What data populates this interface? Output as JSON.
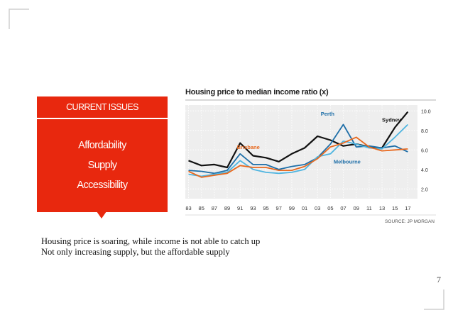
{
  "slide": {
    "header": "CURRENT ISSUES",
    "issues": [
      "Affordability",
      "Supply",
      "Accessibility"
    ],
    "captions": [
      "Housing price is soaring, while income is not able to catch up",
      "Not only increasing supply, but the affordable supply"
    ],
    "page_number": "7"
  },
  "colors": {
    "accent_red": "#e8280e",
    "sydney": "#111111",
    "perth": "#1f6fa8",
    "melbourne": "#4fb5e0",
    "brisbane": "#e8691f",
    "label_blue": "#1f6fa8",
    "label_orange": "#e8691f",
    "chart_bg": "#eeeeee"
  },
  "chart_data": {
    "type": "line",
    "title": "Housing price to median income ratio (x)",
    "source": "SOURCE: JP MORGAN",
    "x": [
      1983,
      1985,
      1987,
      1989,
      1991,
      1993,
      1995,
      1997,
      1999,
      2001,
      2003,
      2005,
      2007,
      2009,
      2011,
      2013,
      2015,
      2017
    ],
    "x_tick_labels": [
      "83",
      "85",
      "87",
      "89",
      "91",
      "93",
      "95",
      "97",
      "99",
      "01",
      "03",
      "05",
      "07",
      "09",
      "11",
      "13",
      "15",
      "17"
    ],
    "xlim": [
      1982.5,
      2018.5
    ],
    "ylim": [
      1.0,
      10.6
    ],
    "y_ticks": [
      2.0,
      4.0,
      6.0,
      8.0,
      10.0
    ],
    "y_tick_labels": [
      "2.0",
      "4.0",
      "6.0",
      "8.0",
      "10.0"
    ],
    "grid": true,
    "series": [
      {
        "name": "Sydney",
        "color_key": "sydney",
        "width": 2.2,
        "values": [
          4.9,
          4.4,
          4.5,
          4.2,
          6.7,
          5.4,
          5.2,
          4.8,
          5.6,
          6.2,
          7.4,
          7.0,
          6.4,
          6.6,
          6.3,
          6.2,
          8.3,
          9.9
        ]
      },
      {
        "name": "Perth",
        "color_key": "perth",
        "width": 1.8,
        "values": [
          3.9,
          3.8,
          3.6,
          3.9,
          5.6,
          4.5,
          4.5,
          4.0,
          4.3,
          4.5,
          5.2,
          6.6,
          8.6,
          6.3,
          6.4,
          6.2,
          6.4,
          5.8
        ]
      },
      {
        "name": "Melbourne",
        "color_key": "melbourne",
        "width": 1.8,
        "values": [
          3.5,
          3.3,
          3.5,
          3.7,
          4.9,
          4.0,
          3.7,
          3.6,
          3.7,
          4.0,
          5.3,
          5.6,
          6.9,
          6.6,
          6.2,
          6.1,
          7.3,
          8.6
        ]
      },
      {
        "name": "Brisbane",
        "color_key": "brisbane",
        "width": 1.8,
        "values": [
          3.8,
          3.2,
          3.4,
          3.6,
          4.4,
          4.2,
          4.2,
          3.9,
          3.9,
          4.3,
          5.1,
          6.3,
          6.7,
          7.3,
          6.3,
          5.9,
          6.0,
          6.1
        ]
      }
    ],
    "labels": [
      {
        "text": "Perth",
        "series": "Perth",
        "x": 2003.5,
        "y": 9.5,
        "color_key": "label_blue"
      },
      {
        "text": "Sydney",
        "series": "Sydney",
        "x": 2013.0,
        "y": 8.9,
        "color_key": "sydney"
      },
      {
        "text": "Brisbane",
        "series": "Brisbane",
        "x": 1990.5,
        "y": 6.1,
        "color_key": "label_orange"
      },
      {
        "text": "Melbourne",
        "series": "Melbourne",
        "x": 2005.5,
        "y": 4.6,
        "color_key": "label_blue"
      }
    ]
  }
}
